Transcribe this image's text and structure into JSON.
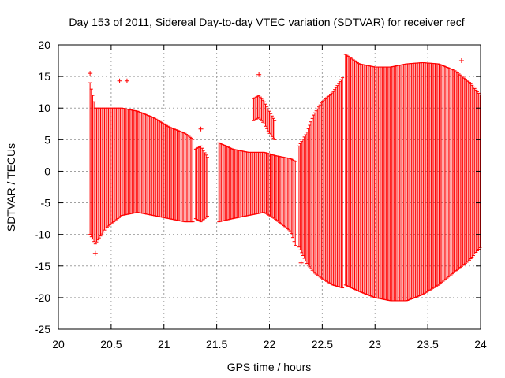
{
  "chart_data": {
    "type": "errorbar",
    "title": "Day 153 of 2011, Sidereal Day-to-day VTEC variation (SDTVAR) for receiver recf",
    "xlabel": "GPS time / hours",
    "ylabel": "SDTVAR / TECUs",
    "xlim": [
      20,
      24
    ],
    "ylim": [
      -25,
      20
    ],
    "xticks": [
      "20",
      "20.5",
      "21",
      "21.5",
      "22",
      "22.5",
      "23",
      "23.5",
      "24"
    ],
    "yticks": [
      "20",
      "15",
      "10",
      "5",
      "0",
      "-5",
      "-10",
      "-15",
      "-20",
      "-25"
    ],
    "grid": true,
    "series_color": "#ff0000",
    "envelope_segments": [
      {
        "name": "segment-1",
        "x": [
          20.3,
          20.35,
          20.45,
          20.6,
          20.75,
          20.9,
          21.05,
          21.2,
          21.28
        ],
        "upper": [
          14,
          10,
          10,
          10,
          9.5,
          8.5,
          7,
          6,
          5
        ],
        "lower": [
          -10,
          -11.5,
          -9,
          -7,
          -6.5,
          -7,
          -7.5,
          -8,
          -8
        ]
      },
      {
        "name": "segment-2",
        "x": [
          21.3,
          21.35,
          21.42
        ],
        "upper": [
          3.5,
          4,
          2
        ],
        "lower": [
          -7.5,
          -8,
          -7
        ]
      },
      {
        "name": "segment-3",
        "x": [
          21.52,
          21.65,
          21.8,
          21.95,
          22.05,
          22.2,
          22.25
        ],
        "upper": [
          4.5,
          3.5,
          3,
          3,
          2.5,
          2,
          1.5
        ],
        "lower": [
          -8,
          -7.5,
          -7,
          -6.5,
          -7.5,
          -9.5,
          -12
        ]
      },
      {
        "name": "segment-4",
        "x": [
          22.28,
          22.35,
          22.42,
          22.5,
          22.6,
          22.7
        ],
        "upper": [
          4,
          6,
          9,
          11,
          12.5,
          15
        ],
        "lower": [
          -12,
          -14.5,
          -16,
          -17,
          -18,
          -18.5
        ]
      },
      {
        "name": "segment-5",
        "x": [
          22.72,
          22.85,
          23,
          23.15,
          23.3,
          23.45,
          23.6,
          23.75,
          23.9,
          24
        ],
        "upper": [
          18.5,
          17,
          16.5,
          16.5,
          17,
          17.2,
          17,
          16,
          14,
          12
        ],
        "lower": [
          -18,
          -19,
          -20,
          -20.5,
          -20.5,
          -19.5,
          -18,
          -16,
          -14,
          -12
        ]
      },
      {
        "name": "upper-ribbon",
        "x": [
          21.85,
          21.9,
          21.95,
          22.0,
          22.05
        ],
        "upper": [
          11.5,
          12,
          11,
          9.5,
          8
        ],
        "lower": [
          8,
          8.5,
          7.5,
          6,
          5
        ]
      }
    ],
    "outliers": [
      {
        "x": 20.3,
        "y": 15.5
      },
      {
        "x": 20.58,
        "y": 14.3
      },
      {
        "x": 20.65,
        "y": 14.3
      },
      {
        "x": 21.35,
        "y": 6.7
      },
      {
        "x": 21.9,
        "y": 15.3
      },
      {
        "x": 22.3,
        "y": -14.5
      },
      {
        "x": 23.82,
        "y": 17.5
      },
      {
        "x": 20.35,
        "y": -13
      }
    ]
  }
}
